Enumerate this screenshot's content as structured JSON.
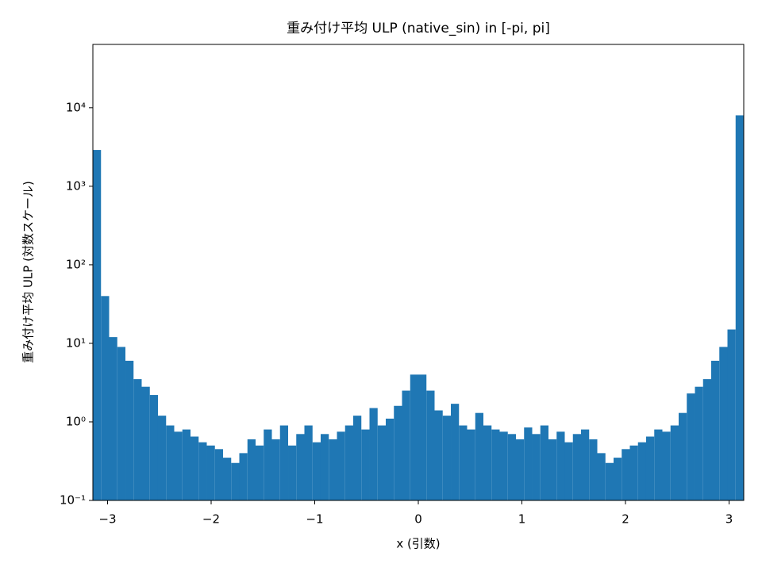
{
  "chart_data": {
    "type": "histogram",
    "title": "重み付け平均 ULP (native_sin) in [-pi, pi]",
    "x_label": "x (引数)",
    "y_label": "重み付け平均 ULP (対数スケール)",
    "color": "#1f77b4",
    "log_y": true,
    "bins": [
      -3.1416,
      -3.0631,
      -2.9845,
      -2.906,
      -2.8274,
      -2.7489,
      -2.6704,
      -2.5918,
      -2.5133,
      -2.4347,
      -2.3562,
      -2.2777,
      -2.1991,
      -2.1206,
      -2.042,
      -1.9635,
      -1.885,
      -1.8064,
      -1.7279,
      -1.6493,
      -1.5708,
      -1.4923,
      -1.4137,
      -1.3352,
      -1.2566,
      -1.1781,
      -1.0996,
      -1.021,
      -0.9425,
      -0.8639,
      -0.7854,
      -0.7069,
      -0.6283,
      -0.5498,
      -0.4712,
      -0.3927,
      -0.3142,
      -0.2356,
      -0.1571,
      -0.0785,
      0,
      0.0785,
      0.1571,
      0.2356,
      0.3142,
      0.3927,
      0.4712,
      0.5498,
      0.6283,
      0.7069,
      0.7854,
      0.8639,
      0.9425,
      1.021,
      1.0996,
      1.1781,
      1.2566,
      1.3352,
      1.4137,
      1.4923,
      1.5708,
      1.6493,
      1.7279,
      1.8064,
      1.885,
      1.9635,
      2.042,
      2.1206,
      2.1991,
      2.2777,
      2.3562,
      2.4347,
      2.5133,
      2.5918,
      2.6704,
      2.7489,
      2.8274,
      2.906,
      2.9845,
      3.0631,
      3.1416
    ],
    "values": [
      2900,
      40,
      12,
      9,
      6,
      3.5,
      2.8,
      2.2,
      1.2,
      0.9,
      0.75,
      0.8,
      0.65,
      0.55,
      0.5,
      0.45,
      0.35,
      0.3,
      0.4,
      0.6,
      0.5,
      0.8,
      0.6,
      0.9,
      0.5,
      0.7,
      0.9,
      0.55,
      0.7,
      0.6,
      0.75,
      0.9,
      1.2,
      0.8,
      1.5,
      0.9,
      1.1,
      1.6,
      2.5,
      4,
      4,
      2.5,
      1.4,
      1.2,
      1.7,
      0.9,
      0.8,
      1.3,
      0.9,
      0.8,
      0.75,
      0.7,
      0.6,
      0.85,
      0.7,
      0.9,
      0.6,
      0.75,
      0.55,
      0.7,
      0.8,
      0.6,
      0.4,
      0.3,
      0.35,
      0.45,
      0.5,
      0.55,
      0.65,
      0.8,
      0.75,
      0.9,
      1.3,
      2.3,
      2.8,
      3.5,
      6,
      9,
      15,
      8000
    ],
    "xlim": [
      -3.1416,
      3.1416
    ],
    "ylim": [
      0.1,
      64000
    ],
    "xticks": [
      {
        "value": -3,
        "label": "−3"
      },
      {
        "value": -2,
        "label": "−2"
      },
      {
        "value": -1,
        "label": "−1"
      },
      0,
      1,
      2,
      3
    ],
    "yticks": [
      {
        "value": 0.1,
        "label": "10⁻¹"
      },
      {
        "value": 1,
        "label": "10⁰"
      },
      {
        "value": 10,
        "label": "10¹"
      },
      {
        "value": 100,
        "label": "10²"
      },
      {
        "value": 1000,
        "label": "10³"
      },
      {
        "value": 10000,
        "label": "10⁴"
      }
    ]
  }
}
